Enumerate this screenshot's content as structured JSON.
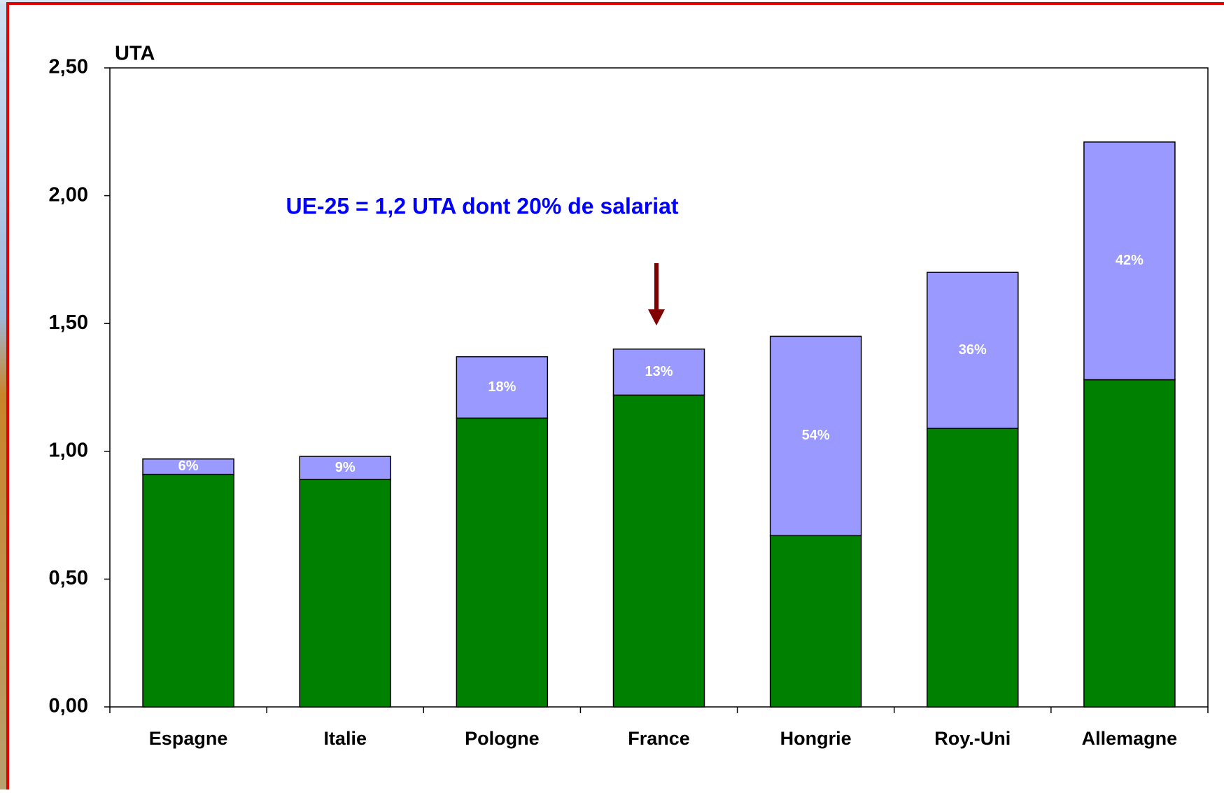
{
  "chart_data": {
    "type": "stacked_bar",
    "y_label": "UTA",
    "annotation": "UE-25 = 1,2 UTA dont 20% de salariat",
    "categories": [
      "Espagne",
      "Italie",
      "Pologne",
      "France",
      "Hongrie",
      "Roy.-Uni",
      "Allemagne"
    ],
    "series": [
      {
        "color": "#008000",
        "values": [
          0.91,
          0.89,
          1.13,
          1.22,
          0.67,
          1.09,
          1.28
        ]
      },
      {
        "color": "#9999ff",
        "values": [
          0.06,
          0.09,
          0.24,
          0.18,
          0.78,
          0.61,
          0.93
        ],
        "share_labels": [
          "6%",
          "9%",
          "18%",
          "13%",
          "54%",
          "36%",
          "42%"
        ]
      }
    ],
    "ylim": [
      0,
      2.5
    ],
    "yticks": [
      {
        "value": 0,
        "label": "0,00"
      },
      {
        "value": 0.5,
        "label": "0,50"
      },
      {
        "value": 1,
        "label": "1,00"
      },
      {
        "value": 1.5,
        "label": "1,50"
      },
      {
        "value": 2,
        "label": "2,00"
      },
      {
        "value": 2.5,
        "label": "2,50"
      }
    ]
  }
}
